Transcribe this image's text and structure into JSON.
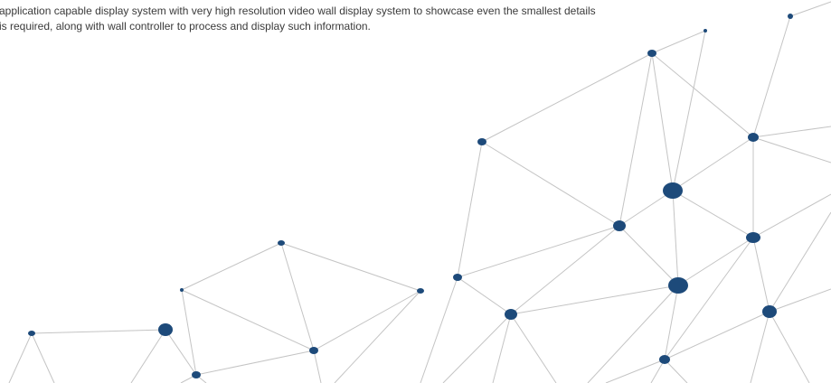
{
  "paragraph": {
    "lines": [
      "application capable display system with very high resolution video wall display system to showcase even the smallest details",
      "is required, along with wall controller to process and display such information."
    ]
  }
}
